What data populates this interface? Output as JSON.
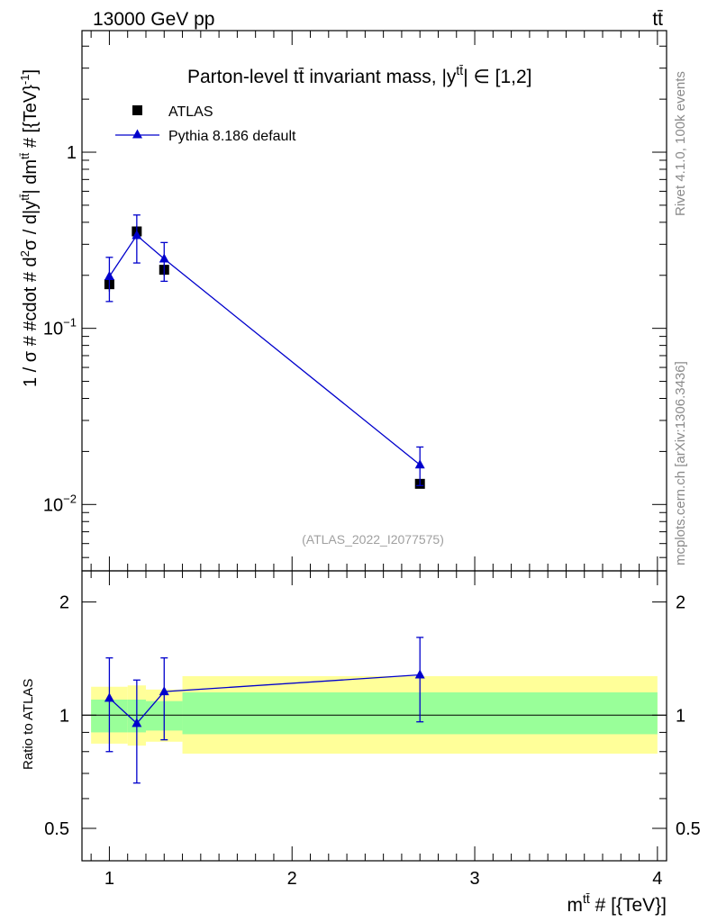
{
  "header": {
    "left": "13000 GeV pp",
    "right": "tt̄"
  },
  "side_labels": {
    "top": "Rivet 4.1.0,  100k events",
    "bottom": "mcplots.cern.ch [arXiv:1306.3436]"
  },
  "colors": {
    "data": "#000000",
    "mc": "#0000cc",
    "band_inner": "#99ff99",
    "band_outer": "#ffff99"
  },
  "chart_data": [
    {
      "type": "scatter",
      "title": "Parton-level tt̄ invariant mass, |ytt̄| ∈ [1,2]",
      "title_text": "Parton-level tt̄ invariant mass, |y",
      "title_sup": "tt̄",
      "title_end": "| ∈ [1,2]",
      "ylabel": "1 / σ # #cdot # d²σ / d|ytt̄| dmtt̄ # [{TeV}⁻¹]",
      "ylabel_parts": [
        "1 / σ # #cdot # d",
        "2",
        "σ / d|y",
        "tt̄",
        "| dm",
        "tt̄",
        " # [{TeV}",
        "-1",
        "]"
      ],
      "yscale": "log",
      "ylim": [
        0.0042,
        4.9
      ],
      "xlim": [
        0.85,
        4.05
      ],
      "yticks": [
        {
          "value": 0.01,
          "base": "10",
          "exp": "−2"
        },
        {
          "value": 0.1,
          "base": "10",
          "exp": "−1"
        },
        {
          "value": 1,
          "base": "1",
          "exp": ""
        }
      ],
      "watermark": "(ATLAS_2022_I2077575)",
      "legend": {
        "position": "top-left",
        "entries": [
          "ATLAS",
          "Pythia 8.186 default"
        ]
      },
      "series": [
        {
          "name": "ATLAS",
          "marker": "square",
          "x": [
            1.0,
            1.15,
            1.3,
            2.7
          ],
          "values": [
            0.178,
            0.355,
            0.215,
            0.0131
          ],
          "err_low": [
            0.162,
            0.33,
            0.199,
            0.0125
          ],
          "err_high": [
            0.193,
            0.381,
            0.231,
            0.0137
          ]
        },
        {
          "name": "Pythia 8.186 default",
          "marker": "triangle",
          "x": [
            1.0,
            1.15,
            1.3,
            2.7
          ],
          "values": [
            0.197,
            0.337,
            0.248,
            0.0168
          ],
          "err_low": [
            0.142,
            0.235,
            0.185,
            0.0128
          ],
          "err_high": [
            0.253,
            0.44,
            0.307,
            0.0212
          ]
        }
      ]
    },
    {
      "type": "scatter",
      "xlabel": "m^tt̄ # [{TeV}]",
      "xlabel_base": "m",
      "xlabel_sup": "tt̄",
      "xlabel_end": " # [{TeV}]",
      "ylabel": "Ratio to ATLAS",
      "yscale": "log",
      "ylim": [
        0.41,
        2.42
      ],
      "xlim": [
        0.85,
        4.05
      ],
      "yticks": [
        {
          "value": 0.5,
          "label": "0.5"
        },
        {
          "value": 1,
          "label": "1"
        },
        {
          "value": 2,
          "label": "2"
        }
      ],
      "xticks": [
        {
          "value": 1,
          "label": "1"
        },
        {
          "value": 2,
          "label": "2"
        },
        {
          "value": 3,
          "label": "3"
        },
        {
          "value": 4,
          "label": "4"
        }
      ],
      "bands": [
        {
          "x0": 0.9,
          "x1": 1.1,
          "inner": [
            0.9,
            1.1
          ],
          "outer": [
            0.84,
            1.19
          ]
        },
        {
          "x0": 1.1,
          "x1": 1.2,
          "inner": [
            0.9,
            1.1
          ],
          "outer": [
            0.83,
            1.2
          ]
        },
        {
          "x0": 1.2,
          "x1": 1.4,
          "inner": [
            0.91,
            1.09
          ],
          "outer": [
            0.85,
            1.17
          ]
        },
        {
          "x0": 1.4,
          "x1": 4.0,
          "inner": [
            0.89,
            1.15
          ],
          "outer": [
            0.79,
            1.27
          ]
        }
      ],
      "series": [
        {
          "name": "Pythia 8.186 default",
          "x": [
            1.0,
            1.15,
            1.3,
            2.7
          ],
          "values": [
            1.11,
            0.951,
            1.155,
            1.28
          ],
          "err_low": [
            0.8,
            0.66,
            0.86,
            0.96
          ],
          "err_high": [
            1.42,
            1.24,
            1.42,
            1.61
          ]
        }
      ]
    }
  ]
}
